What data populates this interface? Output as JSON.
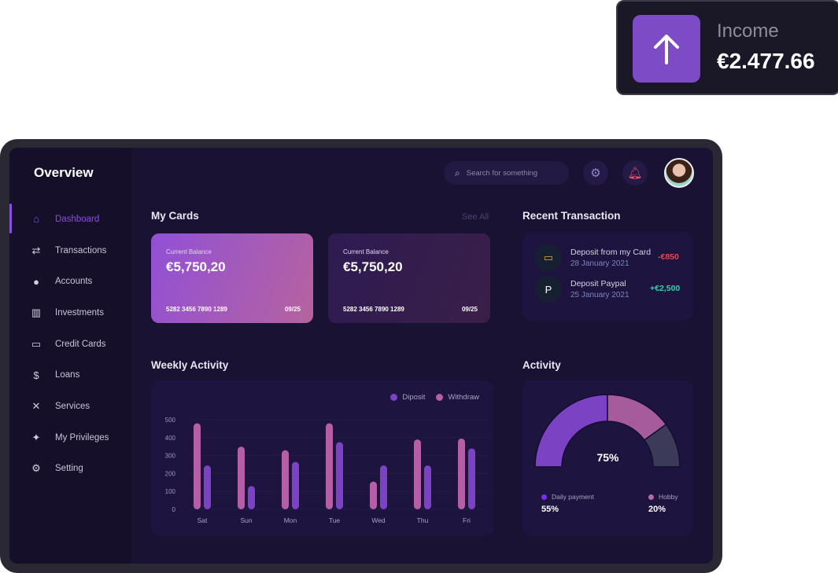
{
  "income": {
    "label": "Income",
    "value": "€2.477.66",
    "icon": "arrow-up-icon"
  },
  "header": {
    "title": "Overview",
    "search_placeholder": "Search for something"
  },
  "sidebar": {
    "items": [
      {
        "label": "Dashboard",
        "icon": "home-icon",
        "active": true
      },
      {
        "label": "Transactions",
        "icon": "transactions-icon"
      },
      {
        "label": "Accounts",
        "icon": "user-icon"
      },
      {
        "label": "Investments",
        "icon": "investments-icon"
      },
      {
        "label": "Credit Cards",
        "icon": "credit-card-icon"
      },
      {
        "label": "Loans",
        "icon": "loans-icon"
      },
      {
        "label": "Services",
        "icon": "services-icon"
      },
      {
        "label": "My Privileges",
        "icon": "privileges-icon"
      },
      {
        "label": "Setting",
        "icon": "gear-icon"
      }
    ]
  },
  "cards": {
    "title": "My Cards",
    "see_all": "See All",
    "items": [
      {
        "label": "Current Balance",
        "balance": "€5,750,20",
        "number": "5282 3456 7890 1289",
        "expiry": "09/25"
      },
      {
        "label": "Current Balance",
        "balance": "€5,750,20",
        "number": "5282 3456 7890 1289",
        "expiry": "09/25"
      }
    ]
  },
  "transactions": {
    "title": "Recent Transaction",
    "items": [
      {
        "name": "Deposit from my Card",
        "date": "28 January 2021",
        "amount": "-€850",
        "color": "#e5484d"
      },
      {
        "name": "Deposit Paypal",
        "date": "25 January 2021",
        "amount": "+€2,500",
        "color": "#2fd3a8"
      }
    ]
  },
  "chart_data": [
    {
      "type": "bar",
      "title": "Weekly Activity",
      "categories": [
        "Sat",
        "Sun",
        "Mon",
        "Tue",
        "Wed",
        "Thu",
        "Fri"
      ],
      "series": [
        {
          "name": "Withdraw",
          "color": "#b55fa8",
          "values": [
            480,
            350,
            330,
            480,
            155,
            390,
            395
          ]
        },
        {
          "name": "Diposit",
          "color": "#7b42c4",
          "values": [
            245,
            130,
            265,
            375,
            245,
            245,
            340
          ]
        }
      ],
      "ylim": [
        0,
        500
      ],
      "yticks": [
        0,
        100,
        200,
        300,
        400,
        500
      ],
      "grid": true,
      "legend": "top-right"
    },
    {
      "type": "pie",
      "title": "Activity",
      "center_label": "75%",
      "slices": [
        {
          "name": "Daily payment",
          "value": 55,
          "label": "55%",
          "color": "#7b42c4"
        },
        {
          "name": "Hobby",
          "value": 20,
          "label": "20%",
          "color": "#a65c9c"
        },
        {
          "name": "",
          "value": 25,
          "color": "#3b3a58"
        }
      ]
    }
  ]
}
